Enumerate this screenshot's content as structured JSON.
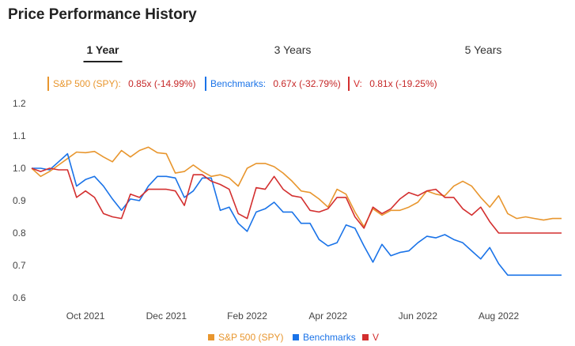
{
  "page": {
    "title": "Price Performance History"
  },
  "tabs": [
    {
      "label": "1 Year",
      "active": true
    },
    {
      "label": "3 Years",
      "active": false
    },
    {
      "label": "5 Years",
      "active": false
    }
  ],
  "summary": [
    {
      "name": "S&P 500 (SPY):",
      "value": "0.85x (-14.99%)",
      "color": "#e8962e"
    },
    {
      "name": "Benchmarks:",
      "value": "0.67x (-32.79%)",
      "color": "#1a73e8"
    },
    {
      "name": "V:",
      "value": "0.81x (-19.25%)",
      "color": "#d32f2f"
    }
  ],
  "legend": [
    {
      "label": "S&P 500 (SPY)",
      "color": "#e8962e"
    },
    {
      "label": "Benchmarks",
      "color": "#1a73e8"
    },
    {
      "label": "V",
      "color": "#d32f2f"
    }
  ],
  "chart_data": {
    "type": "line",
    "title": "",
    "xlabel": "",
    "ylabel": "",
    "ylim": [
      0.6,
      1.2
    ],
    "yticks": [
      "0.6",
      "0.7",
      "0.8",
      "0.9",
      "1.0",
      "1.1",
      "1.2"
    ],
    "yticks_values": [
      0.6,
      0.7,
      0.8,
      0.9,
      1.0,
      1.1,
      1.2
    ],
    "xticks": [
      {
        "label": "Oct 2021",
        "index": 6
      },
      {
        "label": "Dec 2021",
        "index": 15
      },
      {
        "label": "Feb 2022",
        "index": 24
      },
      {
        "label": "Apr 2022",
        "index": 33
      },
      {
        "label": "Jun 2022",
        "index": 43
      },
      {
        "label": "Aug 2022",
        "index": 52
      }
    ],
    "grid": false,
    "legend_position": "bottom",
    "point_count": 60,
    "series": [
      {
        "name": "S&P 500 (SPY)",
        "color": "#e8962e",
        "values": [
          1.0,
          0.975,
          0.99,
          1.01,
          1.03,
          1.05,
          1.048,
          1.052,
          1.035,
          1.02,
          1.055,
          1.035,
          1.055,
          1.065,
          1.048,
          1.045,
          0.985,
          0.99,
          1.01,
          0.99,
          0.975,
          0.98,
          0.97,
          0.945,
          1.0,
          1.015,
          1.015,
          1.005,
          0.985,
          0.96,
          0.93,
          0.925,
          0.905,
          0.88,
          0.935,
          0.92,
          0.865,
          0.82,
          0.875,
          0.855,
          0.87,
          0.87,
          0.88,
          0.895,
          0.93,
          0.92,
          0.915,
          0.945,
          0.96,
          0.945,
          0.91,
          0.88,
          0.915,
          0.86,
          0.845,
          0.85,
          0.845,
          0.84,
          0.845,
          0.845
        ]
      },
      {
        "name": "Benchmarks",
        "color": "#1a73e8",
        "values": [
          1.0,
          1.0,
          0.995,
          1.02,
          1.045,
          0.945,
          0.965,
          0.975,
          0.945,
          0.905,
          0.87,
          0.905,
          0.9,
          0.945,
          0.975,
          0.975,
          0.97,
          0.91,
          0.93,
          0.97,
          0.97,
          0.87,
          0.88,
          0.83,
          0.805,
          0.865,
          0.875,
          0.895,
          0.865,
          0.865,
          0.83,
          0.83,
          0.78,
          0.76,
          0.77,
          0.825,
          0.815,
          0.76,
          0.71,
          0.765,
          0.73,
          0.74,
          0.745,
          0.77,
          0.79,
          0.785,
          0.795,
          0.78,
          0.77,
          0.745,
          0.72,
          0.755,
          0.705,
          0.67,
          0.67,
          0.67,
          0.67,
          0.67,
          0.67,
          0.67
        ]
      },
      {
        "name": "V",
        "color": "#d32f2f",
        "values": [
          1.0,
          0.99,
          1.0,
          0.995,
          0.995,
          0.91,
          0.93,
          0.91,
          0.86,
          0.85,
          0.845,
          0.92,
          0.91,
          0.935,
          0.935,
          0.935,
          0.93,
          0.885,
          0.98,
          0.98,
          0.96,
          0.95,
          0.935,
          0.86,
          0.845,
          0.94,
          0.935,
          0.975,
          0.935,
          0.915,
          0.91,
          0.87,
          0.865,
          0.875,
          0.91,
          0.91,
          0.85,
          0.815,
          0.88,
          0.86,
          0.875,
          0.905,
          0.925,
          0.915,
          0.93,
          0.935,
          0.91,
          0.91,
          0.875,
          0.855,
          0.88,
          0.835,
          0.8,
          0.8,
          0.8,
          0.8,
          0.8,
          0.8,
          0.8,
          0.8
        ]
      }
    ]
  }
}
